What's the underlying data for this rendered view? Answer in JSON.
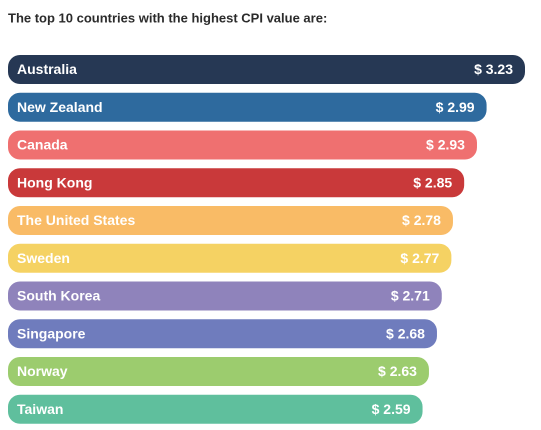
{
  "chart_data": {
    "type": "bar",
    "orientation": "horizontal",
    "title": "The top 10 countries with the highest CPI value are:",
    "categories": [
      "Australia",
      "New Zealand",
      "Canada",
      "Hong Kong",
      "The United States",
      "Sweden",
      "South Korea",
      "Singapore",
      "Norway",
      "Taiwan"
    ],
    "values": [
      3.23,
      2.99,
      2.93,
      2.85,
      2.78,
      2.77,
      2.71,
      2.68,
      2.63,
      2.59
    ],
    "value_labels": [
      "$ 3.23",
      "$ 2.99",
      "$ 2.93",
      "$ 2.85",
      "$ 2.78",
      "$ 2.77",
      "$ 2.71",
      "$ 2.68",
      "$ 2.63",
      "$ 2.59"
    ],
    "colors": [
      "#263854",
      "#2e6a9e",
      "#ef7070",
      "#c9393a",
      "#f9bb66",
      "#f5d263",
      "#8f83bb",
      "#6f7cbd",
      "#9ccc6e",
      "#5fbf9d"
    ]
  }
}
